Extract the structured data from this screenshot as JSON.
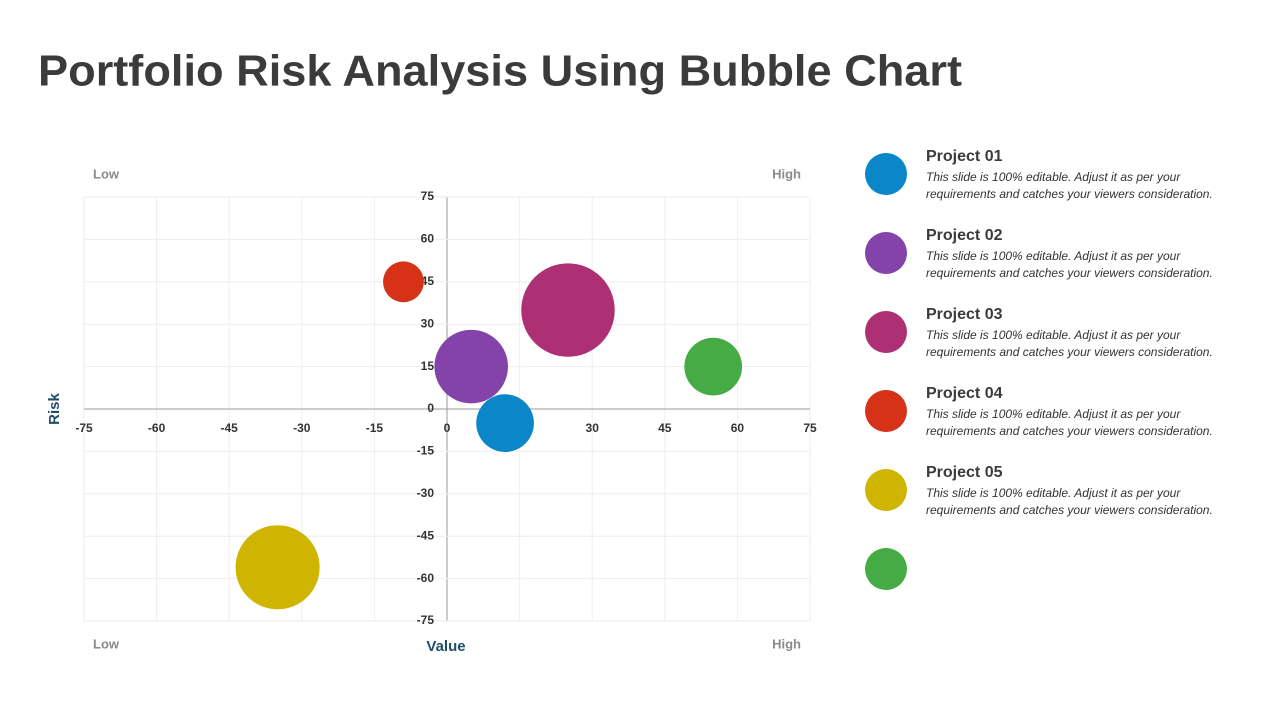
{
  "chart_data": {
    "type": "bubble",
    "title": "Portfolio Risk Analysis Using Bubble Chart",
    "x_label": "Value",
    "y_label": "Risk",
    "corner_labels": {
      "top_left": "Low",
      "top_right": "High",
      "bottom_left": "Low",
      "bottom_right": "High"
    },
    "xlim": [
      -75,
      75
    ],
    "xticks": [
      -75,
      -60,
      -45,
      -30,
      -15,
      0,
      15,
      30,
      45,
      60,
      75
    ],
    "ylim": [
      -75,
      75
    ],
    "yticks": [
      -75,
      -60,
      -45,
      -30,
      -15,
      0,
      15,
      30,
      45,
      60,
      75
    ],
    "grid": true,
    "series": [
      {
        "name": "Project 01",
        "color": "#0a86c9",
        "x": [
          12
        ],
        "values": [
          -5
        ],
        "sizes": [
          8
        ],
        "description": [
          "This slide is 100% editable. Adjust it as per your",
          "requirements and catches your viewers consideration."
        ]
      },
      {
        "name": "Project 02",
        "color": "#8443a8",
        "x": [
          5
        ],
        "values": [
          15
        ],
        "sizes": [
          13
        ],
        "description": [
          "This slide is 100% editable. Adjust it as per your",
          "requirements and catches your viewers consideration."
        ]
      },
      {
        "name": "Project 03",
        "color": "#ad3075",
        "x": [
          25
        ],
        "values": [
          35
        ],
        "sizes": [
          21
        ],
        "description": [
          "This slide is 100% editable. Adjust it as per your",
          "requirements and catches your viewers consideration."
        ]
      },
      {
        "name": "Project 04",
        "color": "#d63217",
        "x": [
          -9
        ],
        "values": [
          45
        ],
        "sizes": [
          4
        ],
        "description": [
          "This slide is 100% editable. Adjust it as per your",
          "requirements and catches your viewers consideration."
        ]
      },
      {
        "name": "Project 05",
        "color": "#cfb500",
        "x": [
          -35
        ],
        "values": [
          -56
        ],
        "sizes": [
          17
        ],
        "description": [
          "This slide is 100% editable. Adjust it as per your",
          "requirements and catches your viewers consideration."
        ]
      },
      {
        "name": null,
        "color": "#44ab45",
        "x": [
          55
        ],
        "values": [
          15
        ],
        "sizes": [
          8
        ]
      }
    ]
  }
}
